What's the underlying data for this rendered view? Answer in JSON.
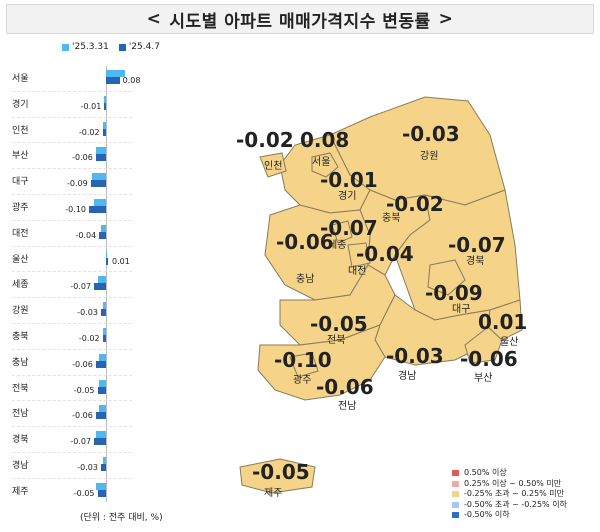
{
  "title": "시도별 아파트 매매가격지수 변동률",
  "title_chevrons": {
    "left": "<",
    "right": ">"
  },
  "chart_data": {
    "type": "bar",
    "categories": [
      "서울",
      "경기",
      "인천",
      "부산",
      "대구",
      "광주",
      "대전",
      "울산",
      "세종",
      "강원",
      "충북",
      "충남",
      "전북",
      "전남",
      "경북",
      "경남",
      "제주"
    ],
    "series": [
      {
        "name": "'25.3.31",
        "color": "#4fb8f0",
        "values": [
          0.11,
          -0.01,
          -0.02,
          -0.06,
          -0.08,
          -0.07,
          -0.03,
          0.0,
          -0.05,
          -0.02,
          -0.02,
          -0.04,
          -0.04,
          -0.04,
          -0.06,
          -0.02,
          -0.06
        ]
      },
      {
        "name": "'25.4.7",
        "color": "#2864b4",
        "values": [
          0.08,
          -0.01,
          -0.02,
          -0.06,
          -0.09,
          -0.1,
          -0.04,
          0.01,
          -0.07,
          -0.03,
          -0.02,
          -0.06,
          -0.05,
          -0.06,
          -0.07,
          -0.03,
          -0.05
        ]
      }
    ],
    "value_labels": [
      "0.08",
      "-0.01",
      "-0.02",
      "-0.06",
      "-0.09",
      "-0.10",
      "-0.04",
      "0.01",
      "-0.07",
      "-0.03",
      "-0.02",
      "-0.06",
      "-0.05",
      "-0.06",
      "-0.07",
      "-0.03",
      "-0.05"
    ],
    "unit_note": "(단위 : 전주 대비, %)"
  },
  "map": {
    "regions": [
      {
        "name": "인천",
        "value": "-0.02",
        "color": "#f5d48a"
      },
      {
        "name": "서울",
        "value": "0.08",
        "color": "#f5d48a"
      },
      {
        "name": "강원",
        "value": "-0.03",
        "color": "#f5d48a"
      },
      {
        "name": "경기",
        "value": "-0.01",
        "color": "#f5d48a"
      },
      {
        "name": "충북",
        "value": "-0.02",
        "color": "#f5d48a"
      },
      {
        "name": "세종",
        "value": "-0.07",
        "color": "#f5d48a"
      },
      {
        "name": "충남",
        "value": "-0.06",
        "color": "#f5d48a"
      },
      {
        "name": "대전",
        "value": "-0.04",
        "color": "#f5d48a"
      },
      {
        "name": "경북",
        "value": "-0.07",
        "color": "#f5d48a"
      },
      {
        "name": "대구",
        "value": "-0.09",
        "color": "#f5d48a"
      },
      {
        "name": "전북",
        "value": "-0.05",
        "color": "#f5d48a"
      },
      {
        "name": "울산",
        "value": "0.01",
        "color": "#f5d48a"
      },
      {
        "name": "광주",
        "value": "-0.10",
        "color": "#f5d48a"
      },
      {
        "name": "경남",
        "value": "-0.03",
        "color": "#f5d48a"
      },
      {
        "name": "부산",
        "value": "-0.06",
        "color": "#f5d48a"
      },
      {
        "name": "전남",
        "value": "-0.06",
        "color": "#f5d48a"
      },
      {
        "name": "제주",
        "value": "-0.05",
        "color": "#f5d48a"
      }
    ],
    "legend": [
      {
        "label": "0.50% 이상",
        "color": "#e05a5a"
      },
      {
        "label": "0.25% 이상 ~ 0.50% 미만",
        "color": "#f4a8a8"
      },
      {
        "label": "-0.25% 초과 ~ 0.25% 미만",
        "color": "#f5d48a"
      },
      {
        "label": "-0.50% 초과 ~ -0.25% 이하",
        "color": "#a9c8ee"
      },
      {
        "label": "-0.50% 이하",
        "color": "#2f6fc4"
      }
    ]
  }
}
